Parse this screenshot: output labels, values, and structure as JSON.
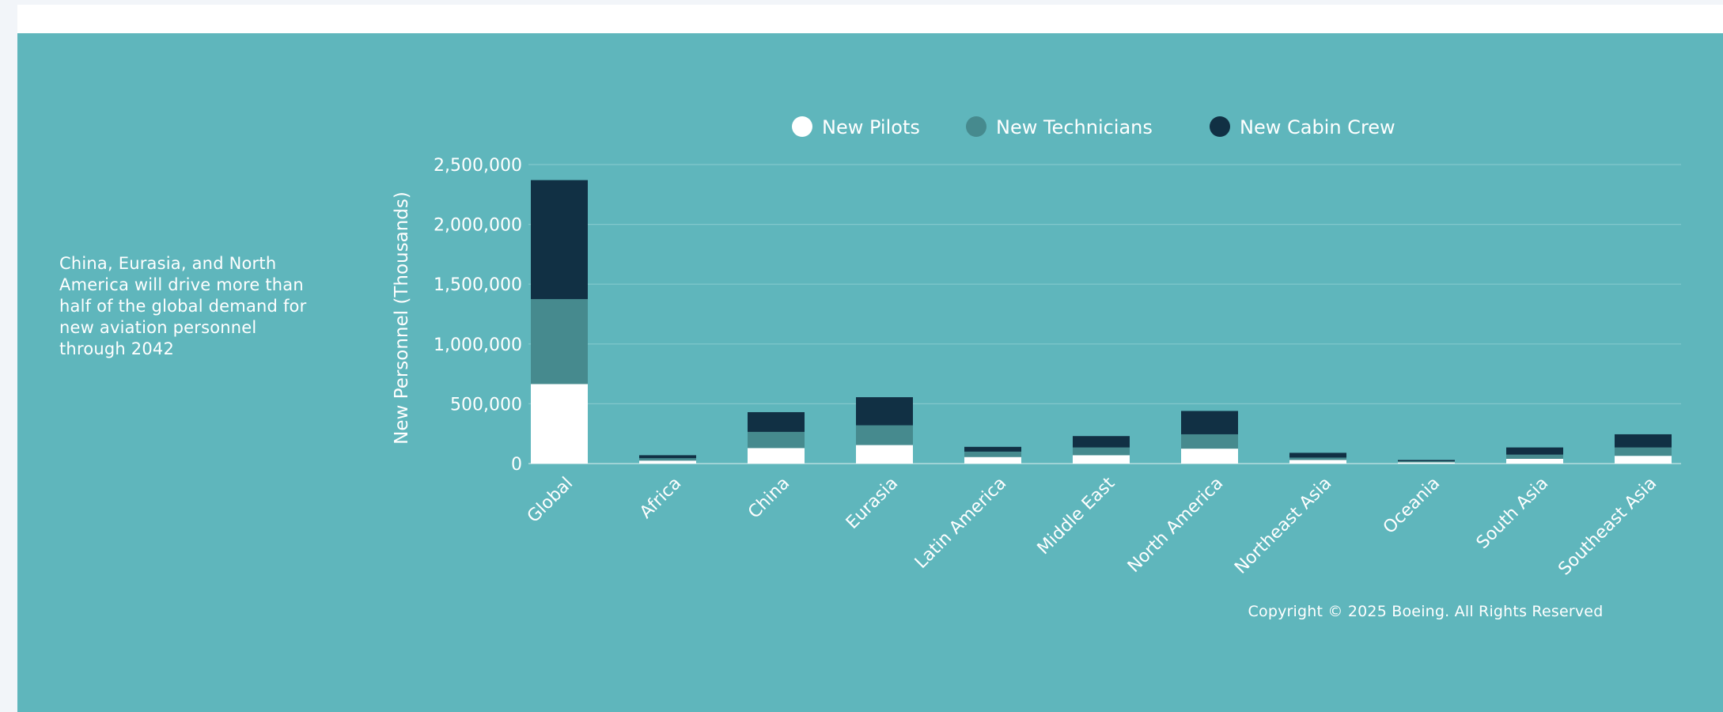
{
  "caption": "China, Eurasia, and North America will drive more than half of the global demand for new aviation personnel through 2042",
  "copyright": "Copyright © 2025 Boeing.  All  Rights Reserved",
  "colors": {
    "background": "#5fb6bc",
    "pilots": "#ffffff",
    "technicians": "#468a8e",
    "cabin_crew": "#113044",
    "gridline": "#82c8cc"
  },
  "chart_data": {
    "type": "bar",
    "stacked": true,
    "ylabel": "New Personnel (Thousands)",
    "xlabel": "",
    "ylim": [
      0,
      2500000
    ],
    "yticks": [
      0,
      500000,
      1000000,
      1500000,
      2000000,
      2500000
    ],
    "ytick_labels": [
      "0",
      "500,000",
      "1,000,000",
      "1,500,000",
      "2,000,000",
      "2,500,000"
    ],
    "grid": true,
    "legend_position": "top",
    "categories": [
      "Global",
      "Africa",
      "China",
      "Eurasia",
      "Latin America",
      "Middle East",
      "North America",
      "Northeast Asia",
      "Oceania",
      "South Asia",
      "Southeast Asia"
    ],
    "series": [
      {
        "name": "New Pilots",
        "color": "#ffffff",
        "values": [
          665000,
          25000,
          130000,
          155000,
          55000,
          70000,
          125000,
          30000,
          10000,
          40000,
          65000
        ]
      },
      {
        "name": "New Technicians",
        "color": "#468a8e",
        "values": [
          710000,
          20000,
          135000,
          165000,
          45000,
          65000,
          120000,
          20000,
          10000,
          35000,
          70000
        ]
      },
      {
        "name": "New Cabin Crew",
        "color": "#113044",
        "values": [
          995000,
          25000,
          165000,
          235000,
          40000,
          95000,
          195000,
          40000,
          10000,
          60000,
          110000
        ]
      }
    ]
  }
}
